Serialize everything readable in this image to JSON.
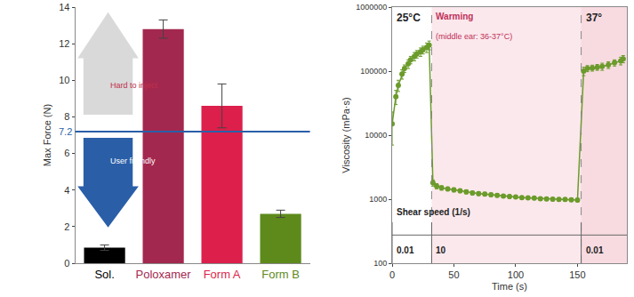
{
  "chart_data": [
    {
      "type": "bar",
      "categories": [
        "Sol.",
        "Poloxamer",
        "Form A",
        "Form B"
      ],
      "values": [
        0.85,
        12.8,
        8.6,
        2.7
      ],
      "errors": [
        0.15,
        0.5,
        1.2,
        0.2
      ],
      "colors": [
        "#000000",
        "#a3284f",
        "#dc1f4b",
        "#5e8a1c"
      ],
      "y_label": "Max Force (N)",
      "ylim": [
        0,
        14
      ],
      "yticks": [
        0,
        2,
        4,
        6,
        8,
        10,
        12,
        14
      ],
      "grid": false,
      "reference_line": 7.2,
      "annotations": [
        "Hard to inject",
        "User friendly"
      ]
    },
    {
      "type": "scatter",
      "x": [
        0,
        3,
        5,
        8,
        10,
        13,
        15,
        18,
        20,
        23,
        25,
        28,
        30,
        33,
        36,
        40,
        45,
        50,
        55,
        60,
        65,
        70,
        75,
        80,
        85,
        90,
        95,
        100,
        105,
        110,
        115,
        120,
        125,
        130,
        135,
        140,
        145,
        150,
        155,
        158,
        162,
        166,
        170,
        175,
        180,
        185,
        187
      ],
      "values": [
        15000,
        40000,
        60000,
        90000,
        110000,
        130000,
        150000,
        170000,
        185000,
        200000,
        215000,
        235000,
        255000,
        1800,
        1600,
        1500,
        1450,
        1400,
        1350,
        1300,
        1250,
        1220,
        1200,
        1170,
        1150,
        1120,
        1100,
        1080,
        1060,
        1050,
        1040,
        1020,
        1010,
        1000,
        995,
        990,
        980,
        970,
        100000,
        110000,
        112000,
        115000,
        118000,
        125000,
        135000,
        145000,
        155000
      ],
      "errors": [
        8000,
        10000,
        12000,
        15000,
        15000,
        20000,
        20000,
        25000,
        25000,
        30000,
        30000,
        40000,
        40000,
        200,
        150,
        120,
        100,
        100,
        90,
        90,
        80,
        80,
        80,
        70,
        70,
        70,
        70,
        60,
        60,
        60,
        60,
        60,
        60,
        60,
        60,
        60,
        60,
        60,
        15000,
        12000,
        12000,
        12000,
        15000,
        15000,
        15000,
        20000,
        20000
      ],
      "color": "#6b9b2b",
      "marker": "circle",
      "line_style": "solid",
      "x_label": "Time (s)",
      "y_label": "Viscosity (mPa·s)",
      "xlim": [
        0,
        190
      ],
      "xticks": [
        0,
        50,
        100,
        150
      ],
      "ylim": [
        100,
        1000000
      ],
      "yticks": [
        100,
        1000,
        10000,
        100000,
        1000000
      ],
      "log": "y",
      "grid": false,
      "phases": [
        {
          "start": 0,
          "label": "25°C"
        },
        {
          "start": 32,
          "label": "Warming",
          "sublabel": "(middle ear: 36-37°C)"
        },
        {
          "start": 153,
          "label": "37°"
        }
      ],
      "shear_speed": {
        "label": "Shear speed (1/s)",
        "segments": [
          {
            "start": 0,
            "end": 32,
            "label": "0.01"
          },
          {
            "start": 32,
            "end": 153,
            "label": "10"
          },
          {
            "start": 153,
            "end": 190,
            "label": "0.01"
          }
        ]
      }
    }
  ]
}
